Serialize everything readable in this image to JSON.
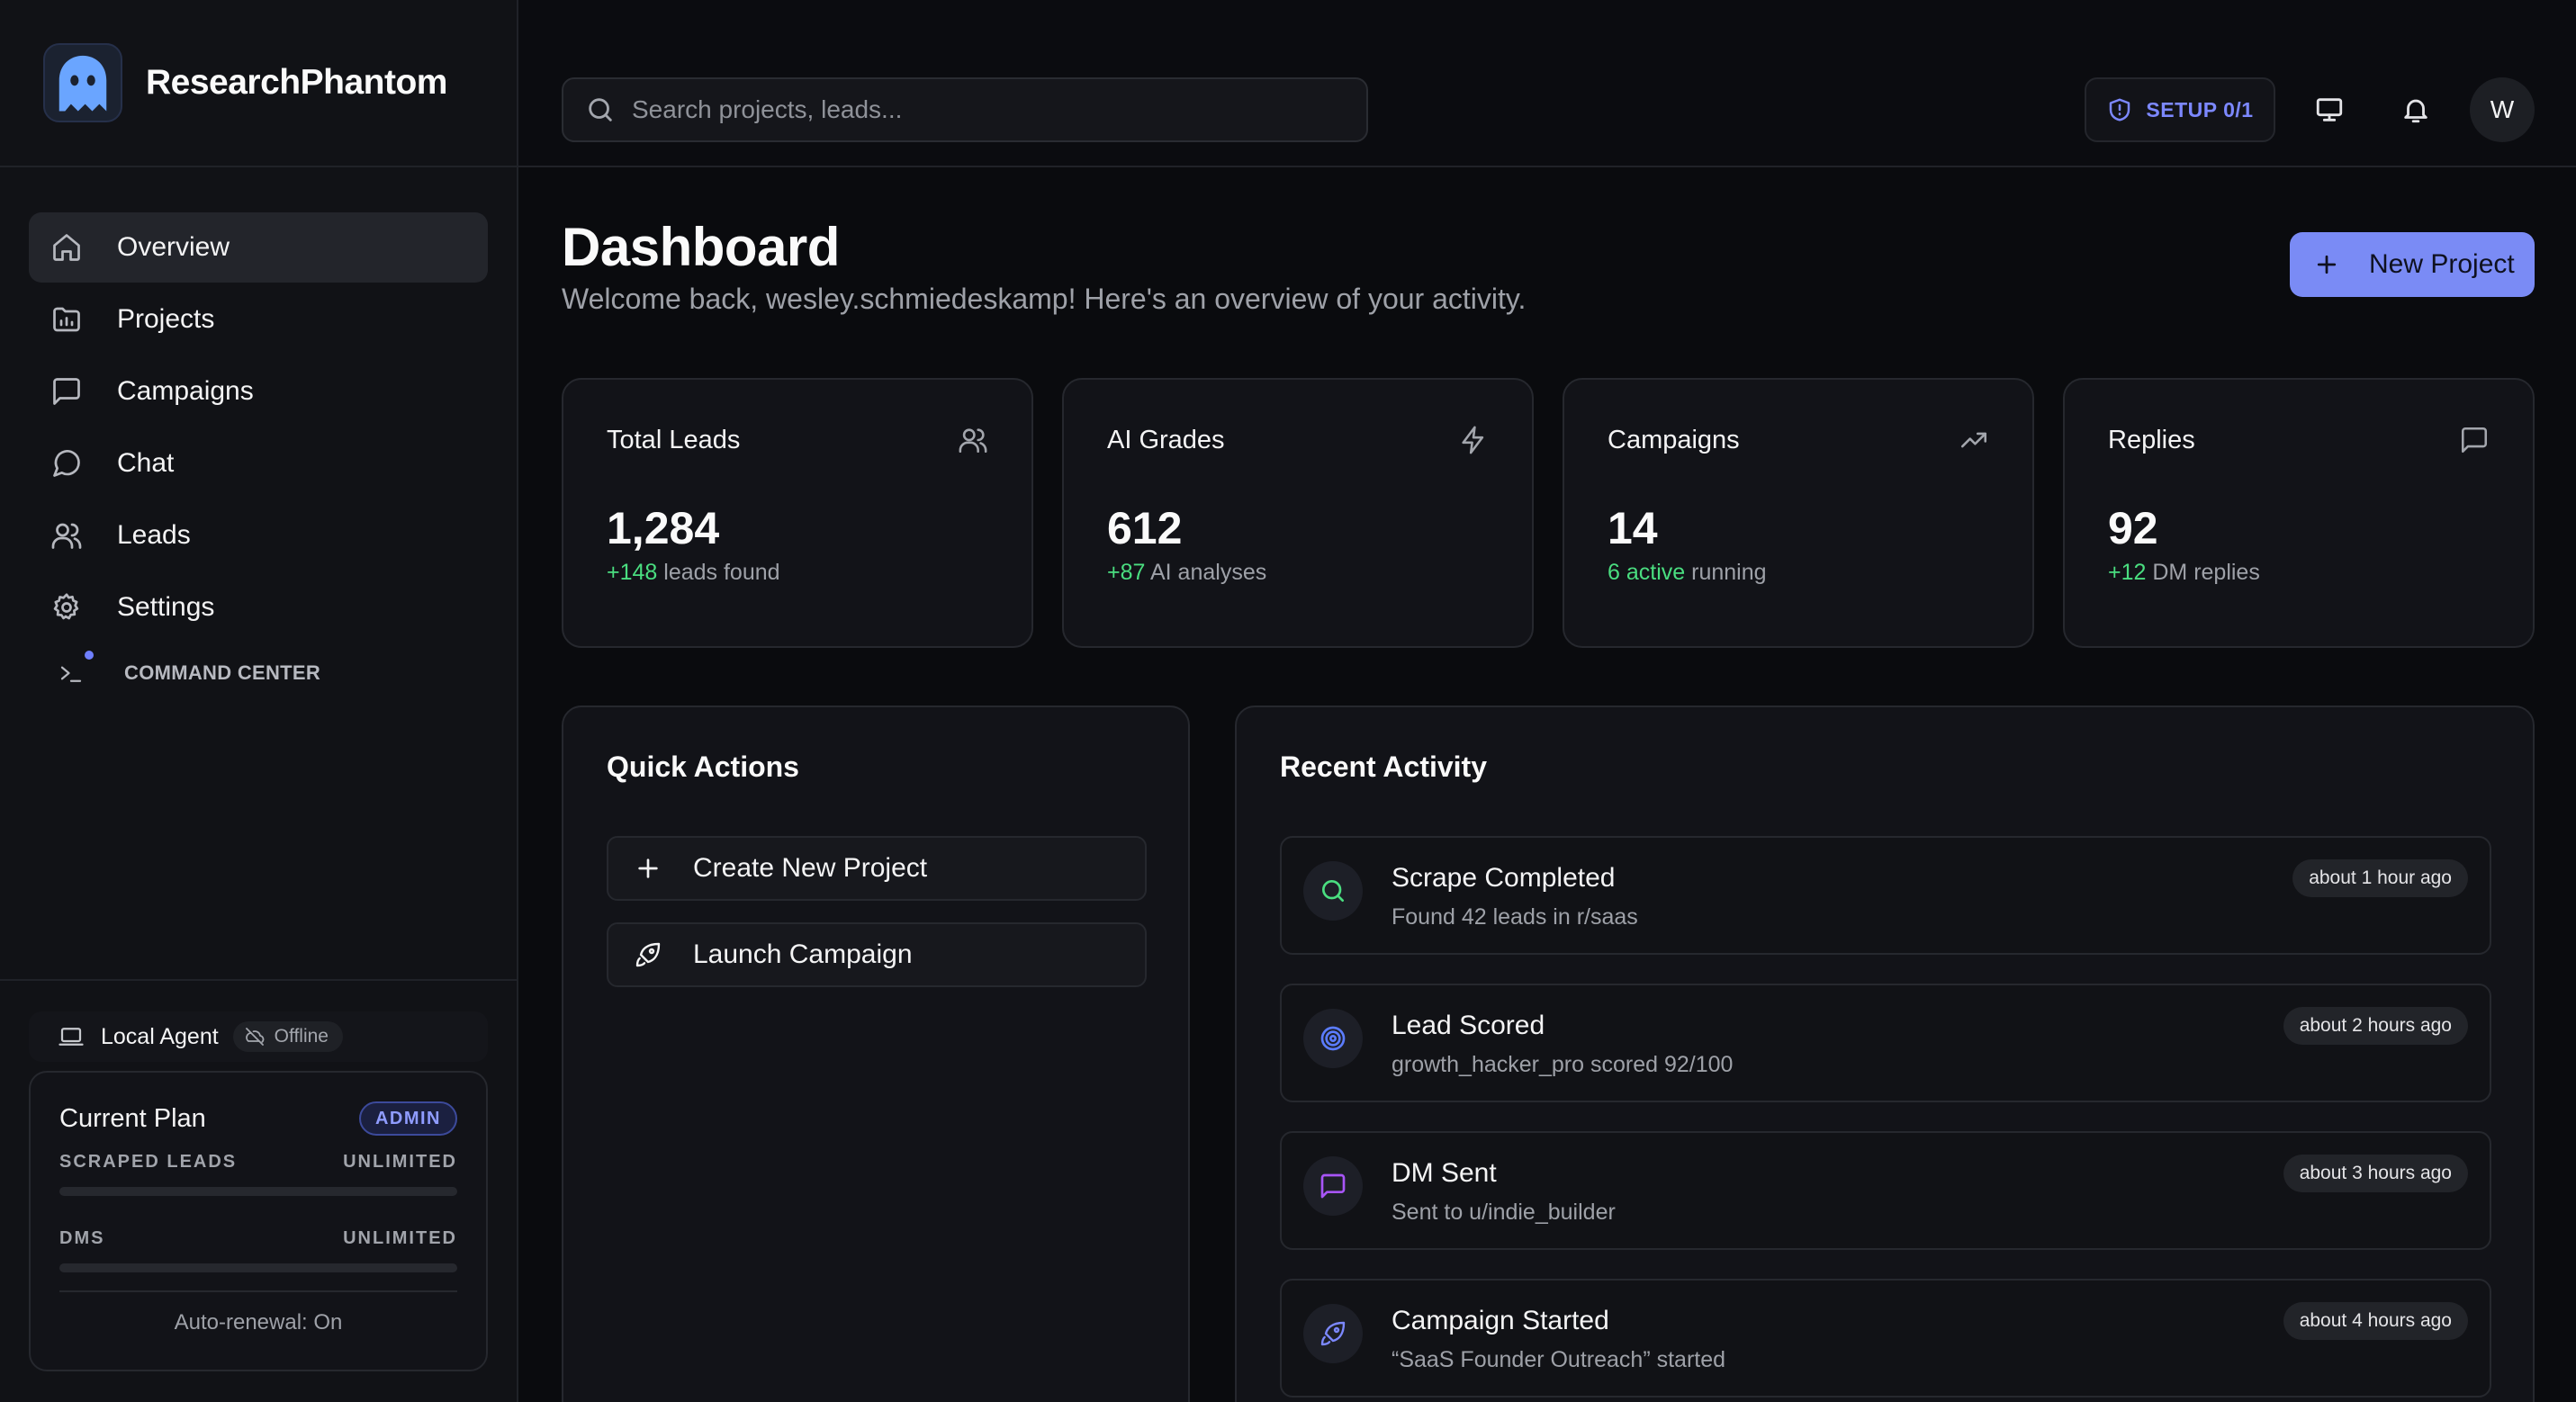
{
  "app": {
    "name": "ResearchPhantom",
    "logo_icon": "ghost-icon"
  },
  "sidebar": {
    "items": [
      {
        "label": "Overview",
        "icon": "home-icon",
        "active": true
      },
      {
        "label": "Projects",
        "icon": "folder-chart-icon",
        "active": false
      },
      {
        "label": "Campaigns",
        "icon": "message-square-icon",
        "active": false
      },
      {
        "label": "Chat",
        "icon": "message-circle-icon",
        "active": false
      },
      {
        "label": "Leads",
        "icon": "users-icon",
        "active": false
      },
      {
        "label": "Settings",
        "icon": "gear-icon",
        "active": false
      }
    ],
    "command_center": {
      "label": "COMMAND CENTER",
      "icon": "terminal-icon"
    },
    "agent": {
      "label": "Local Agent",
      "status": "Offline",
      "icon": "laptop-icon",
      "status_icon": "cloud-off-icon"
    },
    "plan": {
      "title": "Current Plan",
      "badge": "ADMIN",
      "quotas": [
        {
          "label": "SCRAPED LEADS",
          "value": "UNLIMITED"
        },
        {
          "label": "DMS",
          "value": "UNLIMITED"
        }
      ],
      "renewal": "Auto-renewal: On"
    }
  },
  "topbar": {
    "search_placeholder": "Search projects, leads...",
    "setup_label": "SETUP 0/1",
    "avatar_initial": "W"
  },
  "main": {
    "title": "Dashboard",
    "subtitle": "Welcome back, wesley.schmiedeskamp! Here's an overview of your activity.",
    "new_project_label": "New Project",
    "stats": [
      {
        "title": "Total Leads",
        "value": "1,284",
        "delta": "+148",
        "suffix": " leads found",
        "icon": "users-icon"
      },
      {
        "title": "AI Grades",
        "value": "612",
        "delta": "+87",
        "suffix": " AI analyses",
        "icon": "zap-icon"
      },
      {
        "title": "Campaigns",
        "value": "14",
        "delta": "6 active",
        "suffix": " running",
        "icon": "trending-up-icon"
      },
      {
        "title": "Replies",
        "value": "92",
        "delta": "+12",
        "suffix": " DM replies",
        "icon": "message-square-icon"
      }
    ],
    "quick_actions": {
      "title": "Quick Actions",
      "items": [
        {
          "label": "Create New Project",
          "icon": "plus-icon"
        },
        {
          "label": "Launch Campaign",
          "icon": "rocket-icon"
        }
      ]
    },
    "recent_activity": {
      "title": "Recent Activity",
      "items": [
        {
          "title": "Scrape Completed",
          "desc": "Found 42 leads in r/saas",
          "time": "about 1 hour ago",
          "icon": "search-icon",
          "color": "#4ade80"
        },
        {
          "title": "Lead Scored",
          "desc": "growth_hacker_pro scored 92/100",
          "time": "about 2 hours ago",
          "icon": "target-icon",
          "color": "#5b7cff"
        },
        {
          "title": "DM Sent",
          "desc": "Sent to u/indie_builder",
          "time": "about 3 hours ago",
          "icon": "message-square-icon",
          "color": "#a855f7"
        },
        {
          "title": "Campaign Started",
          "desc": "“SaaS Founder Outreach” started",
          "time": "about 4 hours ago",
          "icon": "rocket-icon",
          "color": "#7c88ff"
        }
      ]
    }
  },
  "colors": {
    "accent": "#7a8bf5",
    "positive": "#4ade80",
    "background": "#0a0b0e",
    "card": "#121318"
  }
}
